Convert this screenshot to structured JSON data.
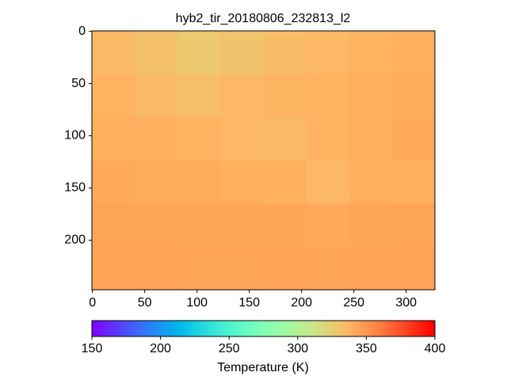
{
  "chart_data": {
    "type": "heatmap",
    "title": "hyb2_tir_20180806_232813_l2",
    "xlim": [
      -0.5,
      327.5
    ],
    "ylim": [
      247.5,
      -0.5
    ],
    "xticks": [
      0,
      50,
      100,
      150,
      200,
      250,
      300
    ],
    "yticks": [
      0,
      50,
      100,
      150,
      200
    ],
    "colormap": "rainbow",
    "values": [
      [
        335,
        332,
        328,
        330,
        334,
        336,
        338,
        340
      ],
      [
        338,
        335,
        333,
        336,
        337,
        338,
        340,
        341
      ],
      [
        340,
        339,
        338,
        336,
        335,
        338,
        340,
        342
      ],
      [
        342,
        341,
        341,
        340,
        339,
        336,
        340,
        340
      ],
      [
        344,
        344,
        343,
        343,
        343,
        342,
        343,
        344
      ],
      [
        345,
        345,
        344,
        344,
        345,
        344,
        345,
        345
      ]
    ],
    "colorbar": {
      "label": "Temperature (K)",
      "clim": [
        150,
        400
      ],
      "ticks": [
        150,
        200,
        250,
        300,
        350,
        400
      ]
    }
  }
}
